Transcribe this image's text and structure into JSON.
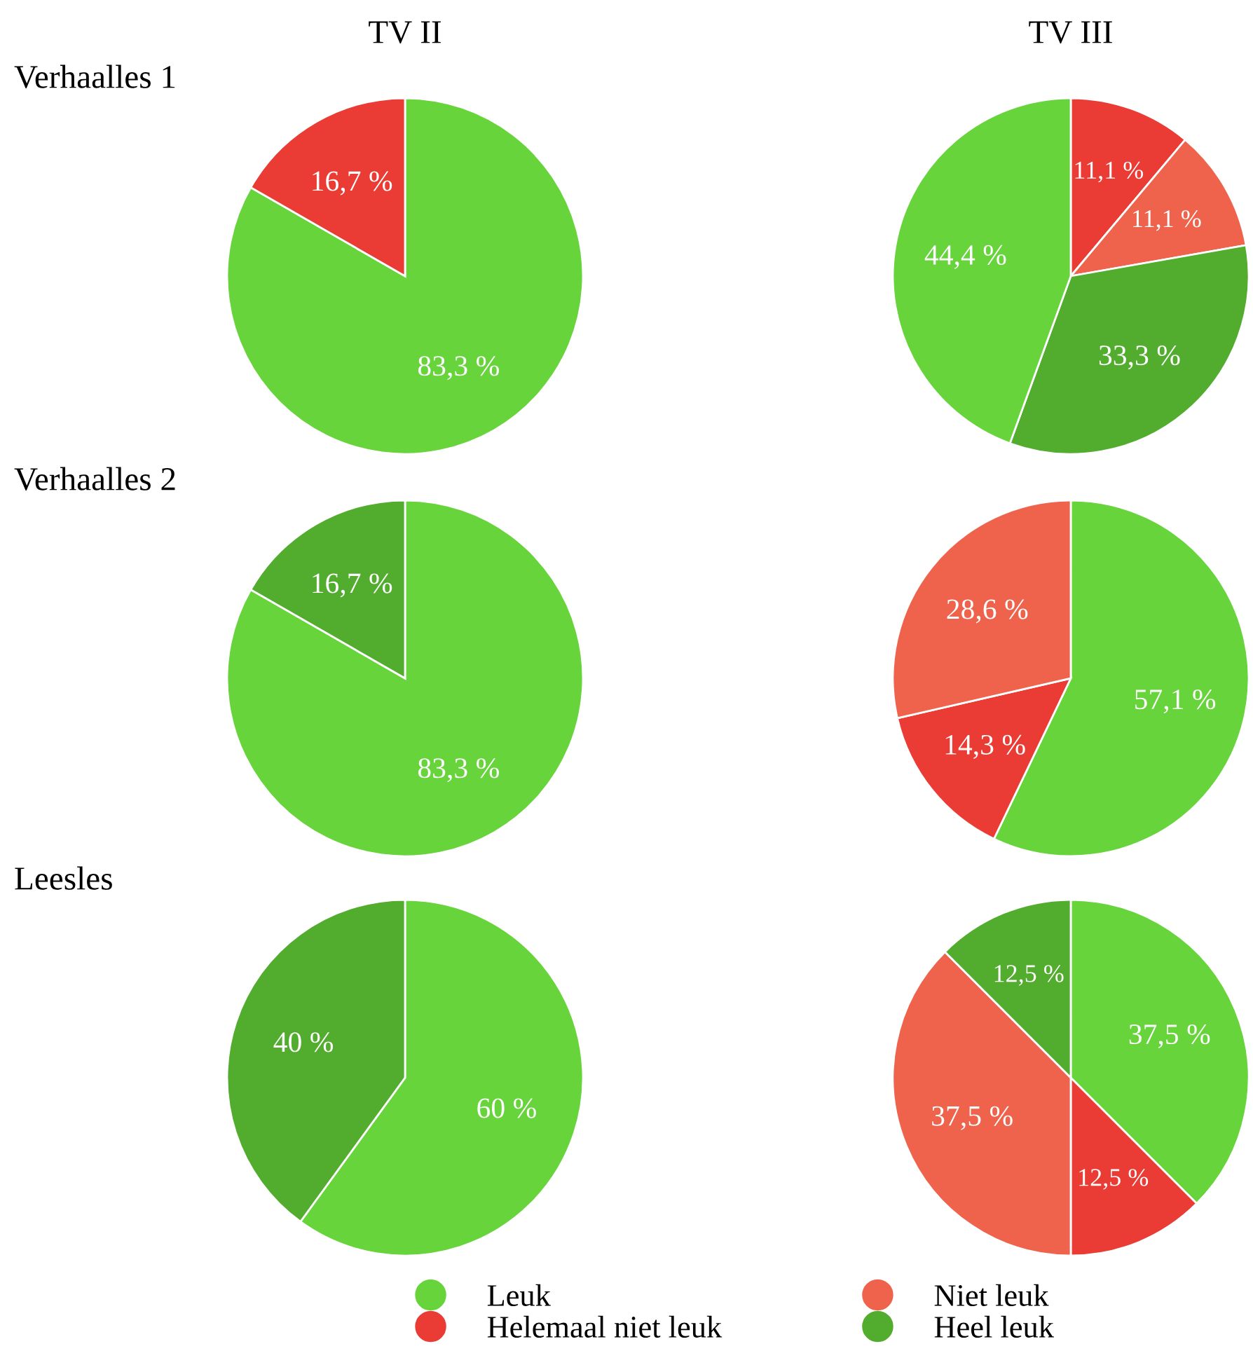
{
  "chart_data": [
    {
      "type": "pie",
      "title": "TV II",
      "subtitle": "Verhaalles 1",
      "categories": [
        null,
        null
      ],
      "values": [
        83.3,
        16.7
      ],
      "colors": [
        "#66d43a",
        "#ea3b35"
      ],
      "value_labels": [
        "83,3 %",
        "16,7 %"
      ]
    },
    {
      "type": "pie",
      "title": "TV III",
      "categories": [
        null,
        null,
        null,
        null
      ],
      "values": [
        11.1,
        11.1,
        33.3,
        44.4
      ],
      "colors": [
        "#ea3b35",
        "#ef634d",
        "#52ad2f",
        "#66d43a"
      ],
      "value_labels": [
        "11,1 %",
        "11,1 %",
        "33,3 %",
        "44,4 %"
      ]
    },
    {
      "type": "pie",
      "subtitle": "Verhaalles 2",
      "categories": [
        null,
        null
      ],
      "values": [
        83.3,
        16.7
      ],
      "colors": [
        "#66d43a",
        "#52ad2f"
      ],
      "value_labels": [
        "83,3 %",
        "16,7 %"
      ]
    },
    {
      "type": "pie",
      "categories": [
        null,
        null,
        null
      ],
      "values": [
        57.1,
        14.3,
        28.6
      ],
      "colors": [
        "#66d43a",
        "#ea3b35",
        "#ef634d"
      ],
      "value_labels": [
        "57,1 %",
        "14,3 %",
        "28,6 %"
      ]
    },
    {
      "type": "pie",
      "subtitle": "Leesles",
      "categories": [
        null,
        null
      ],
      "values": [
        60,
        40
      ],
      "colors": [
        "#66d43a",
        "#52ad2f"
      ],
      "value_labels": [
        "60 %",
        "40 %"
      ]
    },
    {
      "type": "pie",
      "categories": [
        "Leuk",
        "Helemaal niet leuk",
        "Niet leuk",
        "Heel leuk"
      ],
      "values": [
        37.5,
        12.5,
        37.5,
        12.5
      ],
      "colors": [
        "#66d43a",
        "#ea3b35",
        "#ef634d",
        "#52ad2f"
      ],
      "value_labels": [
        "37,5 %",
        "12,5 %",
        "37,5 %",
        "12,5 %"
      ],
      "legend": "bottom"
    }
  ]
}
